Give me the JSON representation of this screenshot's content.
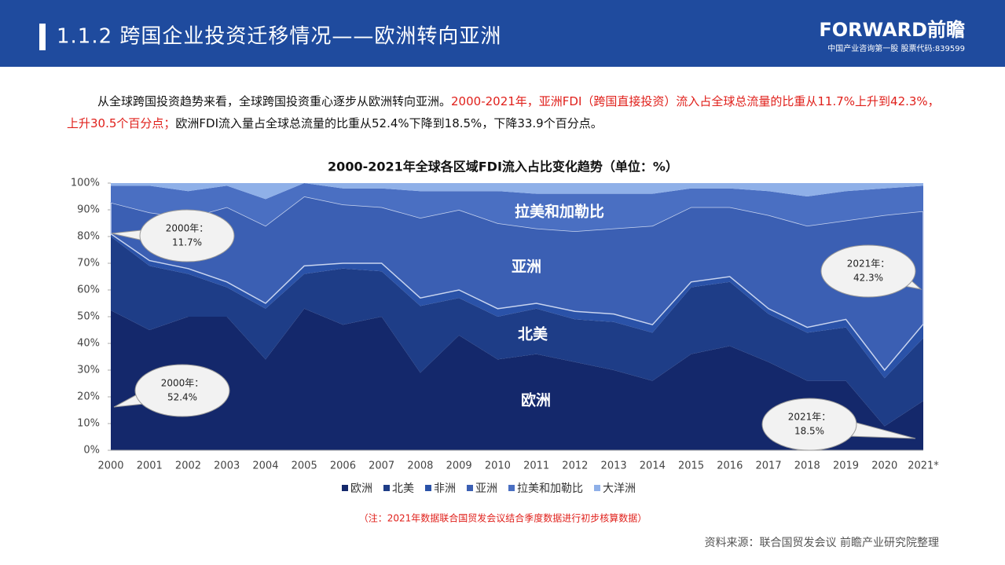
{
  "header": {
    "title": "1.1.2 跨国企业投资迁移情况——欧洲转向亚洲",
    "logo": "FORWARD前瞻",
    "logo_sub": "中国产业咨询第一股  股票代码:839599"
  },
  "intro": [
    "从全球跨国投资趋势来看，全球跨国投资重心逐步从欧洲转向亚洲。",
    "2000-2021年，亚洲FDI（跨国直接投资）流入占全球总流量的比重从11.7%上升到42.3%，上升30.5个百分点；",
    "欧洲FDI流入量占全球总流量的比重从52.4%下降到18.5%，下降33.9个百分点。"
  ],
  "chart_data": {
    "type": "stacked_area",
    "title": "2000-2021年全球各区域FDI流入占比变化趋势（单位：%）",
    "categories": [
      "2000",
      "2001",
      "2002",
      "2003",
      "2004",
      "2005",
      "2006",
      "2007",
      "2008",
      "2009",
      "2010",
      "2011",
      "2012",
      "2013",
      "2014",
      "2015",
      "2016",
      "2017",
      "2018",
      "2019",
      "2020",
      "2021*"
    ],
    "series": [
      {
        "name": "欧洲",
        "color": "#14286b",
        "values": [
          52.4,
          45,
          50,
          50,
          34,
          53,
          47,
          50,
          29,
          43,
          34,
          36,
          33,
          30,
          26,
          36,
          39,
          33,
          26,
          26,
          9,
          18.5
        ]
      },
      {
        "name": "北美",
        "color": "#1e3d87",
        "values": [
          27.6,
          24,
          16,
          11,
          19,
          13,
          21,
          17,
          25,
          14,
          16,
          17,
          16,
          18,
          18,
          25,
          24,
          18,
          18,
          20,
          18,
          23.5
        ]
      },
      {
        "name": "非洲",
        "color": "#2a52a8",
        "values": [
          1,
          2,
          2,
          2,
          2,
          3,
          2,
          3,
          3,
          3,
          3,
          2,
          3,
          3,
          3,
          2,
          2,
          2,
          2,
          3,
          3,
          5.2
        ]
      },
      {
        "name": "亚洲",
        "color": "#3b5fb3",
        "values": [
          11.7,
          18,
          19,
          28,
          29,
          26,
          22,
          21,
          30,
          30,
          32,
          28,
          30,
          32,
          37,
          28,
          26,
          35,
          38,
          37,
          58,
          42.3
        ]
      },
      {
        "name": "拉美和加勒比",
        "color": "#4a6fc2",
        "values": [
          6.3,
          10,
          10,
          8,
          10,
          5,
          6,
          7,
          10,
          7,
          12,
          13,
          14,
          13,
          12,
          7,
          7,
          9,
          11,
          11,
          10,
          9.5
        ]
      },
      {
        "name": "大洋洲",
        "color": "#8fb0e8",
        "values": [
          1,
          1,
          3,
          1,
          6,
          0,
          2,
          2,
          3,
          3,
          3,
          4,
          4,
          4,
          4,
          2,
          2,
          3,
          5,
          3,
          2,
          1
        ]
      }
    ],
    "ylim": [
      0,
      100
    ],
    "yticks": [
      {
        "value": 0,
        "label": "0%"
      },
      {
        "value": 10,
        "label": "10%"
      },
      {
        "value": 20,
        "label": "20%"
      },
      {
        "value": 30,
        "label": "30%"
      },
      {
        "value": 40,
        "label": "40%"
      },
      {
        "value": 50,
        "label": "50%"
      },
      {
        "value": 60,
        "label": "60%"
      },
      {
        "value": 70,
        "label": "70%"
      },
      {
        "value": 80,
        "label": "80%"
      },
      {
        "value": 90,
        "label": "90%"
      },
      {
        "value": 100,
        "label": "100%"
      }
    ],
    "annotations": [
      {
        "text": [
          "2000年：",
          "11.7%"
        ]
      },
      {
        "text": [
          "2021年：",
          "42.3%"
        ]
      },
      {
        "text": [
          "2000年：",
          "52.4%"
        ]
      },
      {
        "text": [
          "2021年：",
          "18.5%"
        ]
      }
    ],
    "legend": "bottom",
    "note": "（注：2021年数据联合国贸发会议结合季度数据进行初步核算数据）"
  },
  "source": "资料来源：联合国贸发会议 前瞻产业研究院整理"
}
